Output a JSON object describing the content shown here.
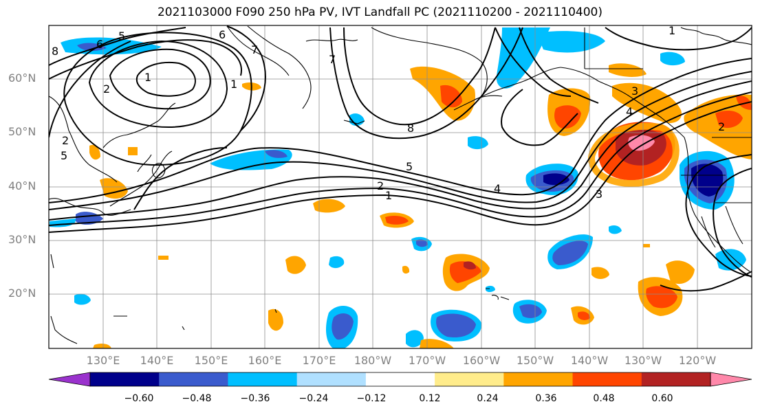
{
  "title": "2021103000 F090 250 hPa PV, IVT Landfall PC (2021110200 - 2021110400)",
  "lat_labels": [
    "60°N",
    "50°N",
    "40°N",
    "30°N",
    "20°N"
  ],
  "lon_labels": [
    "130°E",
    "140°E",
    "150°E",
    "160°E",
    "170°E",
    "180°W",
    "170°W",
    "160°W",
    "150°W",
    "140°W",
    "130°W",
    "120°W"
  ],
  "colorbar": {
    "colors": [
      "#9a32cd",
      "#00008b",
      "#3a5bcd",
      "#00bfff",
      "#b0e0ff",
      "#ffffff",
      "#ffec8b",
      "#ffa500",
      "#ff4500",
      "#b22222",
      "#ff88aa"
    ],
    "tick_labels": [
      "−0.60",
      "−0.48",
      "−0.36",
      "−0.24",
      "−0.12",
      "0.12",
      "0.24",
      "0.36",
      "0.48",
      "0.60"
    ]
  },
  "contour_labels": [
    "6",
    "5",
    "7",
    "8",
    "1",
    "2",
    "1",
    "2",
    "4",
    "3",
    "5",
    "1",
    "2",
    "4",
    "3",
    "7",
    "8",
    "1",
    "2",
    "6",
    "5"
  ]
}
